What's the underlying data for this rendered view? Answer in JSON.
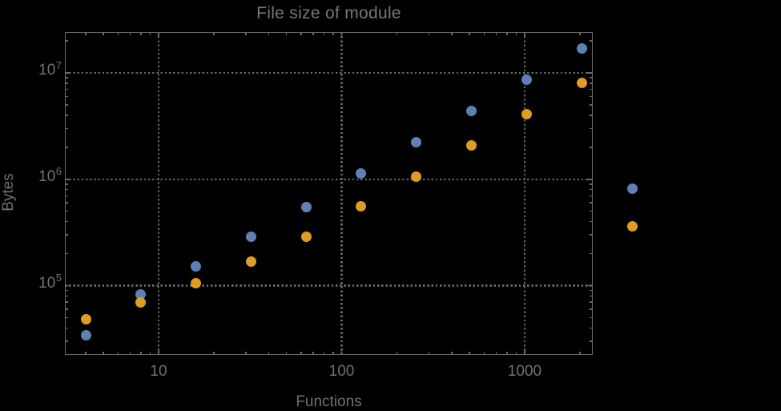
{
  "title": "File size of module",
  "colors": {
    "background": "#000000",
    "frame": "#6a6a6a",
    "grid": "#656565",
    "text": "#707070",
    "series_blue": "#5e81b5",
    "series_orange": "#e19c24"
  },
  "axes": {
    "x": {
      "label": "Functions",
      "scale": "log",
      "range": [
        3.1,
        2380
      ],
      "major_ticks": [
        {
          "value": 10,
          "label": "10"
        },
        {
          "value": 100,
          "label": "100"
        },
        {
          "value": 1000,
          "label": "1000"
        }
      ]
    },
    "y": {
      "label": "Bytes",
      "scale": "log",
      "range": [
        22000,
        24000000
      ],
      "major_ticks": [
        {
          "value": 100000,
          "base": "10",
          "exp": "5"
        },
        {
          "value": 1000000,
          "base": "10",
          "exp": "6"
        },
        {
          "value": 10000000,
          "base": "10",
          "exp": "7"
        }
      ]
    }
  },
  "chart_data": {
    "type": "scatter",
    "title": "File size of module",
    "xlabel": "Functions",
    "ylabel": "Bytes",
    "x_scale": "log",
    "y_scale": "log",
    "xlim": [
      3.1,
      2380
    ],
    "ylim": [
      22000,
      24000000
    ],
    "grid": "dotted lines at decade gridlines",
    "x": [
      4,
      8,
      16,
      32,
      64,
      128,
      256,
      512,
      1024,
      2048
    ],
    "series": [
      {
        "name": "series-1-blue",
        "color": "#5e81b5",
        "values": [
          34000,
          83000,
          151000,
          286000,
          552000,
          1140000,
          2240000,
          4400000,
          8600000,
          17100000
        ]
      },
      {
        "name": "series-2-orange",
        "color": "#e19c24",
        "values": [
          48500,
          70000,
          106000,
          167000,
          290000,
          556000,
          1060000,
          2090000,
          4060000,
          8100000
        ]
      }
    ],
    "legend": {
      "position": "outside-right",
      "labels_visible": false,
      "markers": [
        {
          "series": "series-1-blue",
          "color": "#5e81b5"
        },
        {
          "series": "series-2-orange",
          "color": "#e19c24"
        }
      ]
    }
  }
}
